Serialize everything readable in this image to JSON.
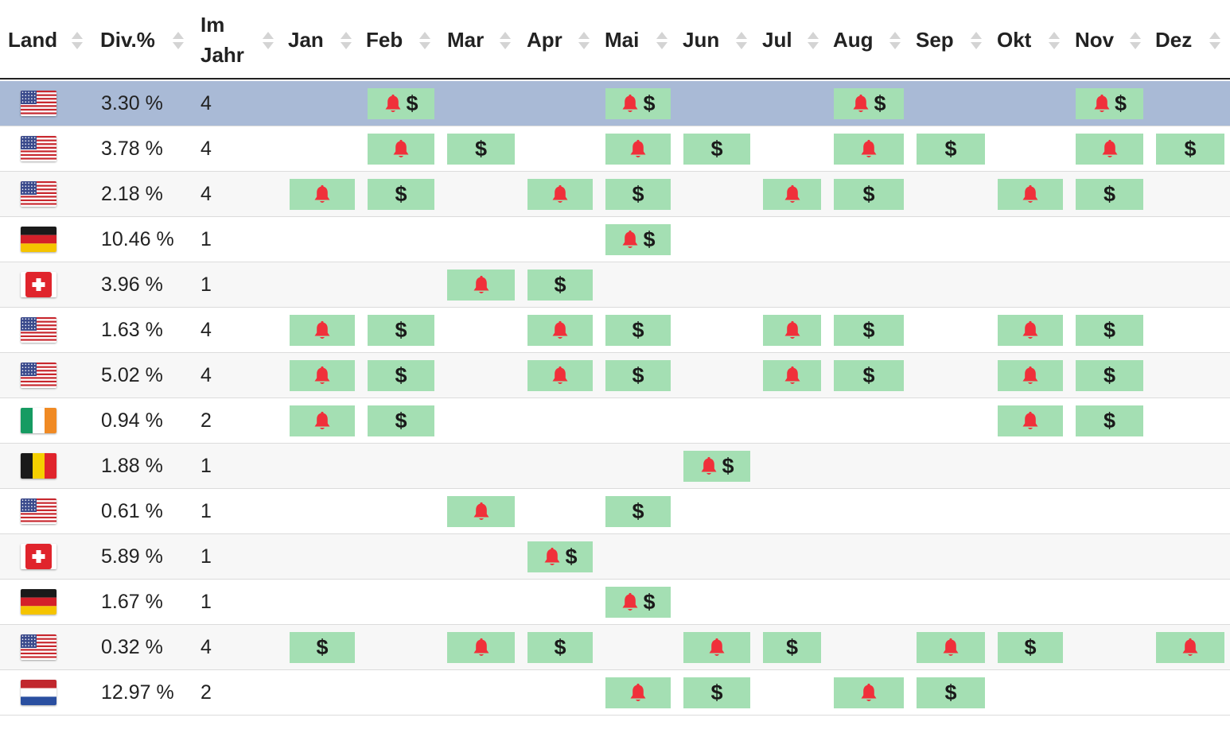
{
  "header": {
    "land": "Land",
    "yield": "Div.%",
    "freq": "Im\nJahr",
    "months": [
      "Jan",
      "Feb",
      "Mar",
      "Apr",
      "Mai",
      "Jun",
      "Jul",
      "Aug",
      "Sep",
      "Okt",
      "Nov",
      "Dez"
    ]
  },
  "colors": {
    "cell": "#a4dfb3",
    "bell": "#f0303a",
    "selected_row": "#a9bad6",
    "dollar": "#1a1a1a"
  },
  "icons": {
    "bell": "bell-icon",
    "dollar": "dollar-sign",
    "sort": "sort-icon"
  },
  "rows": [
    {
      "flag": "us",
      "yield": "3.30 %",
      "freq": "4",
      "selected": true,
      "months": [
        "",
        "B$",
        "",
        "",
        "B$",
        "",
        "",
        "B$",
        "",
        "",
        "B$",
        ""
      ]
    },
    {
      "flag": "us",
      "yield": "3.78 %",
      "freq": "4",
      "months": [
        "",
        "B",
        "$",
        "",
        "B",
        "$",
        "",
        "B",
        "$",
        "",
        "B",
        "$"
      ]
    },
    {
      "flag": "us",
      "yield": "2.18 %",
      "freq": "4",
      "months": [
        "B",
        "$",
        "",
        "B",
        "$",
        "",
        "B",
        "$",
        "",
        "B",
        "$",
        ""
      ]
    },
    {
      "flag": "de",
      "yield": "10.46 %",
      "freq": "1",
      "months": [
        "",
        "",
        "",
        "",
        "B$",
        "",
        "",
        "",
        "",
        "",
        "",
        ""
      ]
    },
    {
      "flag": "ch",
      "yield": "3.96 %",
      "freq": "1",
      "months": [
        "",
        "",
        "B",
        "$",
        "",
        "",
        "",
        "",
        "",
        "",
        "",
        ""
      ]
    },
    {
      "flag": "us",
      "yield": "1.63 %",
      "freq": "4",
      "months": [
        "B",
        "$",
        "",
        "B",
        "$",
        "",
        "B",
        "$",
        "",
        "B",
        "$",
        ""
      ]
    },
    {
      "flag": "us",
      "yield": "5.02 %",
      "freq": "4",
      "months": [
        "B",
        "$",
        "",
        "B",
        "$",
        "",
        "B",
        "$",
        "",
        "B",
        "$",
        ""
      ]
    },
    {
      "flag": "ie",
      "yield": "0.94 %",
      "freq": "2",
      "months": [
        "B",
        "$",
        "",
        "",
        "",
        "",
        "",
        "",
        "",
        "B",
        "$",
        ""
      ]
    },
    {
      "flag": "be",
      "yield": "1.88 %",
      "freq": "1",
      "months": [
        "",
        "",
        "",
        "",
        "",
        "B$",
        "",
        "",
        "",
        "",
        "",
        ""
      ]
    },
    {
      "flag": "us",
      "yield": "0.61 %",
      "freq": "1",
      "months": [
        "",
        "",
        "B",
        "",
        "$",
        "",
        "",
        "",
        "",
        "",
        "",
        ""
      ]
    },
    {
      "flag": "ch",
      "yield": "5.89 %",
      "freq": "1",
      "months": [
        "",
        "",
        "",
        "B$",
        "",
        "",
        "",
        "",
        "",
        "",
        "",
        ""
      ]
    },
    {
      "flag": "de",
      "yield": "1.67 %",
      "freq": "1",
      "months": [
        "",
        "",
        "",
        "",
        "B$",
        "",
        "",
        "",
        "",
        "",
        "",
        ""
      ]
    },
    {
      "flag": "us",
      "yield": "0.32 %",
      "freq": "4",
      "months": [
        "$",
        "",
        "B",
        "$",
        "",
        "B",
        "$",
        "",
        "B",
        "$",
        "",
        "B"
      ]
    },
    {
      "flag": "nl",
      "yield": "12.97 %",
      "freq": "2",
      "months": [
        "",
        "",
        "",
        "",
        "B",
        "$",
        "",
        "B",
        "$",
        "",
        "",
        ""
      ]
    }
  ]
}
